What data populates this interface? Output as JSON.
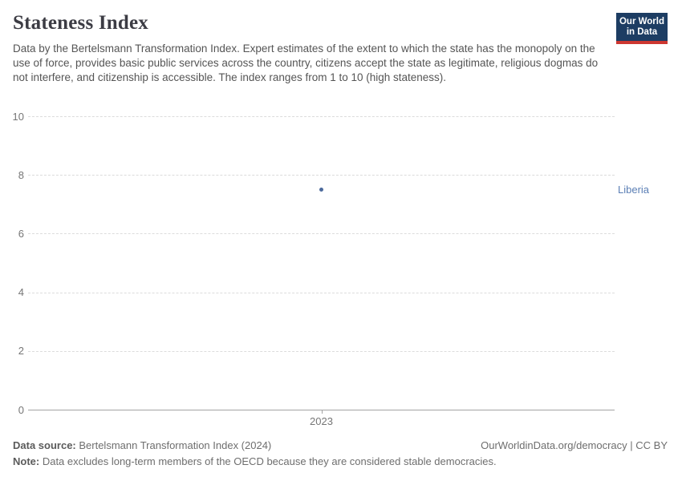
{
  "header": {
    "title": "Stateness Index",
    "subtitle": "Data by the Bertelsmann Transformation Index. Expert estimates of the extent to which the state has the monopoly on the use of force, provides basic public services across the country, citizens accept the state as legitimate, religious dogmas do not interfere, and citizenship is accessible. The index ranges from 1 to 10 (high stateness).",
    "logo": {
      "line1": "Our World",
      "line2": "in Data",
      "bg_color": "#1d3d63",
      "bar_color": "#cd3731"
    }
  },
  "chart_data": {
    "type": "scatter",
    "title": "Stateness Index",
    "xlabel": "",
    "ylabel": "",
    "ylim": [
      0,
      10
    ],
    "yticks": [
      0,
      2,
      4,
      6,
      8,
      10
    ],
    "xticks": [
      "2023"
    ],
    "grid": "horizontal-dashed",
    "gridline_color": "#dcdcdc",
    "axis_line_color": "#a3a3a3",
    "tick_label_color": "#767676",
    "series": [
      {
        "name": "Liberia",
        "color": "#4c6a9c",
        "points": [
          {
            "x": 2023,
            "y": 7.5
          }
        ]
      }
    ],
    "entity_labels": [
      {
        "text": "Liberia",
        "color": "#5b7fb5",
        "y": 7.5
      }
    ]
  },
  "footer": {
    "datasource_label": "Data source:",
    "datasource_value": " Bertelsmann Transformation Index (2024)",
    "link_text": "OurWorldinData.org/democracy | CC BY",
    "note_label": "Note:",
    "note_value": " Data excludes long-term members of the OECD because they are considered stable democracies."
  }
}
